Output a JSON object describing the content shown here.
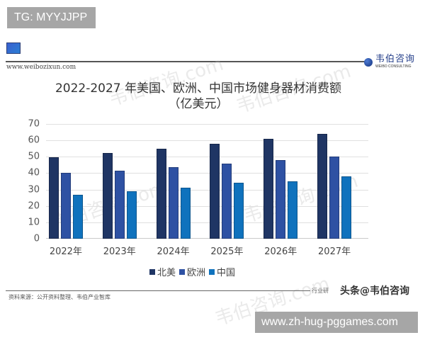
{
  "overlay": {
    "tg_badge": "TG: MYYJJPP",
    "url_badge": "www.zh-hug-pggames.com"
  },
  "header": {
    "site_url": "www.weibozixun.com",
    "logo_cn": "韦伯咨询",
    "logo_en": "WEIBO CONSULTING"
  },
  "footer": {
    "source": "资料来源：公开资料整理、韦伯产业智库",
    "tag": "行业研",
    "watermark": "头条@韦伯咨询"
  },
  "watermarks": [
    "韦伯咨询.com",
    "韦伯咨询.com",
    "韦伯咨询.com",
    "韦伯咨询.com",
    "韦伯咨询.com"
  ],
  "colors": {
    "north_america": "#1f3564",
    "europe": "#2e51a3",
    "china": "#0f72bd"
  },
  "chart_data": {
    "type": "bar",
    "title": "2022-2027 年美国、欧洲、中国市场健身器材消费额",
    "subtitle": "（亿美元）",
    "categories": [
      "2022年",
      "2023年",
      "2024年",
      "2025年",
      "2026年",
      "2027年"
    ],
    "series": [
      {
        "name": "北美",
        "color": "#1f3564",
        "values": [
          49.5,
          52.5,
          55,
          58,
          61,
          64
        ]
      },
      {
        "name": "欧洲",
        "color": "#2e51a3",
        "values": [
          40,
          41.5,
          43.5,
          46,
          48,
          50
        ]
      },
      {
        "name": "中国",
        "color": "#0f72bd",
        "values": [
          27,
          29,
          31,
          34,
          35,
          38
        ]
      }
    ],
    "xlabel": "",
    "ylabel": "",
    "ylim": [
      0,
      70
    ],
    "yticks": [
      0,
      10,
      20,
      30,
      40,
      50,
      60,
      70
    ],
    "grid": true,
    "legend_position": "bottom"
  }
}
